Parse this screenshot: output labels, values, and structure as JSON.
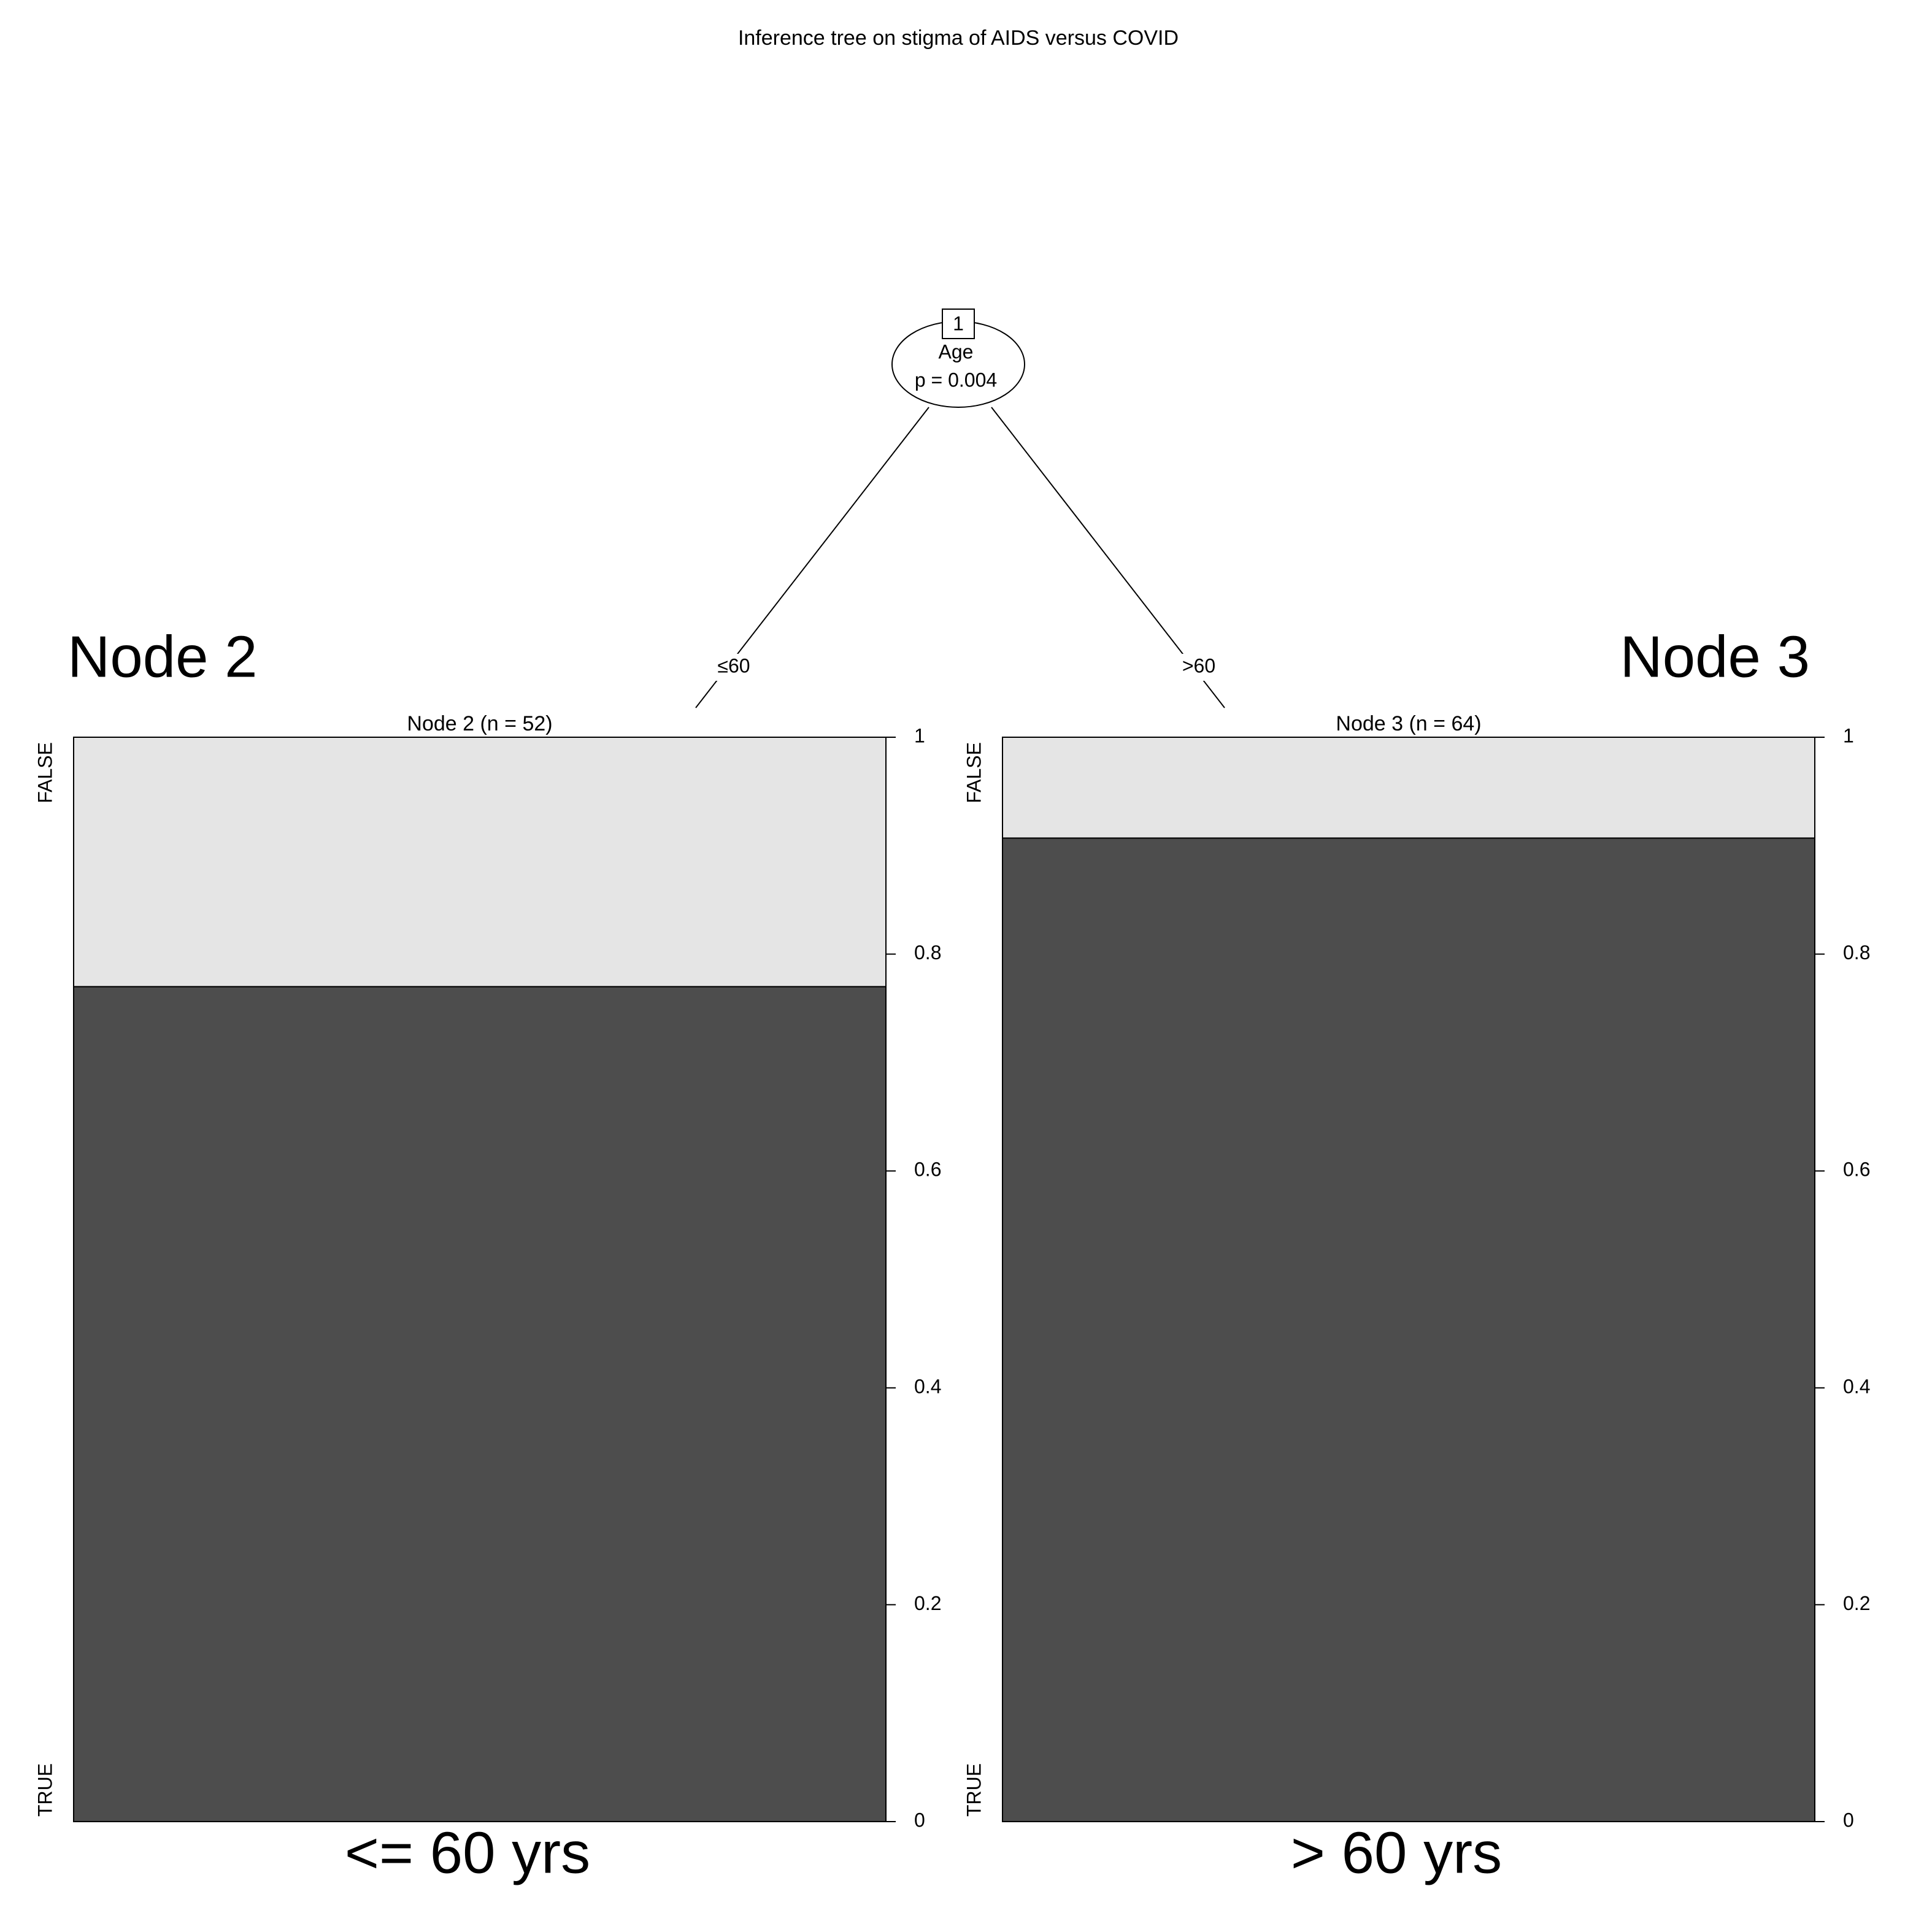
{
  "title": "Inference tree on stigma of AIDS versus COVID",
  "tree": {
    "node_id": "1",
    "variable": "Age",
    "p_value": "p = 0.004",
    "edges": [
      "≤60",
      ">60"
    ]
  },
  "chart_data": [
    {
      "type": "stacked_bar",
      "title": "Node 2 (n = 52)",
      "annotation": "Node 2",
      "xlabel": "<= 60 yrs",
      "series": [
        {
          "name": "TRUE",
          "color": "#4d4d4d",
          "values": [
            0.77
          ]
        },
        {
          "name": "FALSE",
          "color": "#e5e5e5",
          "values": [
            0.23
          ]
        }
      ],
      "ylim": [
        0,
        1
      ],
      "yticks": [
        0,
        0.2,
        0.4,
        0.6,
        0.8,
        1
      ]
    },
    {
      "type": "stacked_bar",
      "title": "Node 3 (n = 64)",
      "annotation": "Node 3",
      "xlabel": "> 60 yrs",
      "series": [
        {
          "name": "TRUE",
          "color": "#4d4d4d",
          "values": [
            0.907
          ]
        },
        {
          "name": "FALSE",
          "color": "#e5e5e5",
          "values": [
            0.093
          ]
        }
      ],
      "ylim": [
        0,
        1
      ],
      "yticks": [
        0,
        0.2,
        0.4,
        0.6,
        0.8,
        1
      ]
    }
  ]
}
